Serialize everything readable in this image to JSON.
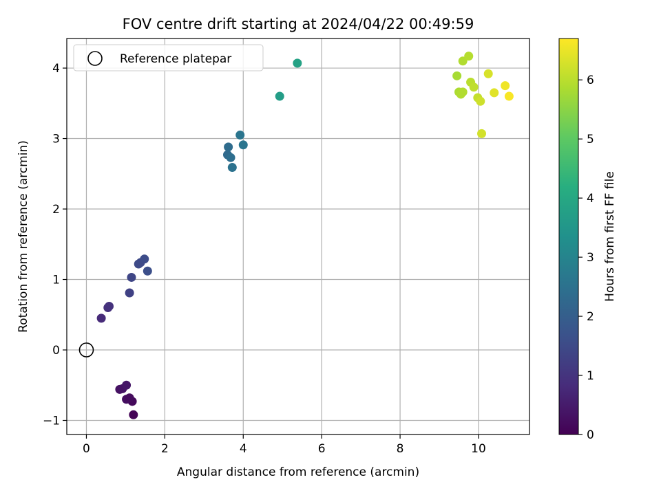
{
  "chart_data": {
    "type": "scatter",
    "title": "FOV centre drift starting at 2024/04/22 00:49:59",
    "xlabel": "Angular distance from reference (arcmin)",
    "ylabel": "Rotation from reference (arcmin)",
    "xlim": [
      -0.5,
      11.3
    ],
    "ylim": [
      -1.2,
      4.42
    ],
    "xticks": [
      0,
      2,
      4,
      6,
      8,
      10
    ],
    "yticks": [
      -1,
      0,
      1,
      2,
      3,
      4
    ],
    "grid": true,
    "legend": {
      "position": "top-left",
      "entries": [
        "Reference platepar"
      ]
    },
    "reference_point": {
      "x": 0,
      "y": 0,
      "label": "Reference platepar"
    },
    "colorbar": {
      "label": "Hours from first FF file",
      "colormap": "viridis",
      "range": [
        0,
        6.7
      ],
      "ticks": [
        0,
        1,
        2,
        3,
        4,
        5,
        6
      ]
    },
    "points": [
      {
        "x": 1.2,
        "y": -0.92,
        "c": 0.05
      },
      {
        "x": 1.17,
        "y": -0.73,
        "c": 0.15
      },
      {
        "x": 1.02,
        "y": -0.7,
        "c": 0.25
      },
      {
        "x": 1.1,
        "y": -0.68,
        "c": 0.2
      },
      {
        "x": 0.85,
        "y": -0.56,
        "c": 0.3
      },
      {
        "x": 0.92,
        "y": -0.55,
        "c": 0.35
      },
      {
        "x": 1.02,
        "y": -0.5,
        "c": 0.4
      },
      {
        "x": 0.38,
        "y": 0.45,
        "c": 0.8
      },
      {
        "x": 0.55,
        "y": 0.6,
        "c": 0.9
      },
      {
        "x": 0.58,
        "y": 0.62,
        "c": 0.95
      },
      {
        "x": 1.1,
        "y": 0.81,
        "c": 1.3
      },
      {
        "x": 1.15,
        "y": 1.03,
        "c": 1.4
      },
      {
        "x": 1.33,
        "y": 1.22,
        "c": 1.5
      },
      {
        "x": 1.38,
        "y": 1.24,
        "c": 1.5
      },
      {
        "x": 1.48,
        "y": 1.29,
        "c": 1.55
      },
      {
        "x": 1.56,
        "y": 1.12,
        "c": 1.6
      },
      {
        "x": 3.6,
        "y": 2.77,
        "c": 2.3
      },
      {
        "x": 3.62,
        "y": 2.88,
        "c": 2.35
      },
      {
        "x": 3.68,
        "y": 2.73,
        "c": 2.4
      },
      {
        "x": 3.72,
        "y": 2.59,
        "c": 2.5
      },
      {
        "x": 3.92,
        "y": 3.05,
        "c": 2.6
      },
      {
        "x": 4.0,
        "y": 2.91,
        "c": 2.6
      },
      {
        "x": 4.93,
        "y": 3.6,
        "c": 3.7
      },
      {
        "x": 5.38,
        "y": 4.07,
        "c": 3.85
      },
      {
        "x": 9.45,
        "y": 3.89,
        "c": 5.8
      },
      {
        "x": 9.5,
        "y": 3.66,
        "c": 5.85
      },
      {
        "x": 9.55,
        "y": 3.63,
        "c": 5.9
      },
      {
        "x": 9.6,
        "y": 3.66,
        "c": 5.9
      },
      {
        "x": 9.6,
        "y": 4.1,
        "c": 5.9
      },
      {
        "x": 9.75,
        "y": 4.17,
        "c": 5.95
      },
      {
        "x": 9.8,
        "y": 3.8,
        "c": 6.0
      },
      {
        "x": 9.88,
        "y": 3.73,
        "c": 6.05
      },
      {
        "x": 9.98,
        "y": 3.58,
        "c": 6.1
      },
      {
        "x": 10.05,
        "y": 3.53,
        "c": 6.2
      },
      {
        "x": 10.08,
        "y": 3.07,
        "c": 6.25
      },
      {
        "x": 10.25,
        "y": 3.92,
        "c": 6.3
      },
      {
        "x": 10.4,
        "y": 3.65,
        "c": 6.4
      },
      {
        "x": 10.68,
        "y": 3.75,
        "c": 6.55
      },
      {
        "x": 10.78,
        "y": 3.6,
        "c": 6.65
      }
    ]
  }
}
